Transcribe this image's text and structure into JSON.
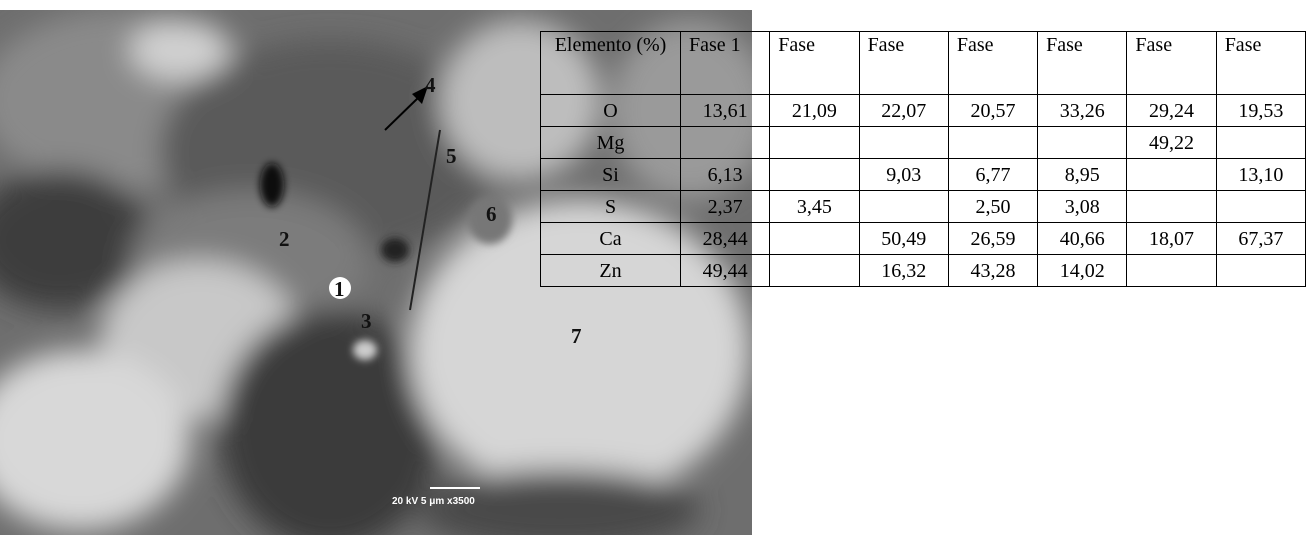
{
  "figure": {
    "labels": [
      "1",
      "2",
      "3",
      "4",
      "5",
      "6",
      "7"
    ],
    "scale_bar": "20 kV   5 μm   x3500"
  },
  "table": {
    "header": [
      "Elemento (%)",
      "Fase 1",
      "Fase",
      "Fase",
      "Fase",
      "Fase",
      "Fase",
      "Fase"
    ],
    "rows": [
      [
        "O",
        "13,61",
        "21,09",
        "22,07",
        "20,57",
        "33,26",
        "29,24",
        "19,53"
      ],
      [
        "Mg",
        null,
        null,
        null,
        null,
        null,
        "49,22",
        null
      ],
      [
        "Si",
        "6,13",
        null,
        "9,03",
        "6,77",
        "8,95",
        null,
        "13,10"
      ],
      [
        "S",
        "2,37",
        "3,45",
        null,
        "2,50",
        "3,08",
        null,
        null
      ],
      [
        "Ca",
        "28,44",
        null,
        "50,49",
        "26,59",
        "40,66",
        "18,07",
        "67,37"
      ],
      [
        "Zn",
        "49,44",
        null,
        "16,32",
        "43,28",
        "14,02",
        null,
        null
      ]
    ]
  }
}
